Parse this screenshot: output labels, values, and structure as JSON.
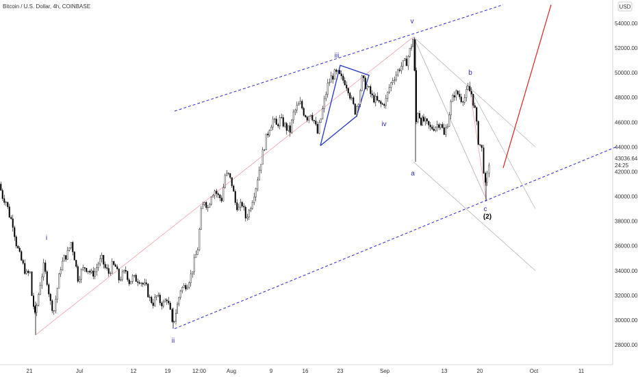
{
  "header": {
    "symbol_title": "Bitcoin / U.S. Dollar, 4h, COINBASE",
    "currency_badge": "USD"
  },
  "price_axis": {
    "ticks": [
      "54000.00",
      "52000.00",
      "50000.00",
      "48000.00",
      "46000.00",
      "44000.00",
      "42000.00",
      "40000.00",
      "38000.00",
      "36000.00",
      "34000.00",
      "32000.00",
      "30000.00",
      "28000.00"
    ],
    "last_price": "43036.64",
    "countdown": "24:25"
  },
  "time_axis": {
    "ticks": [
      "21",
      "Jul",
      "12",
      "19",
      "12:00",
      "Aug",
      "9",
      "16",
      "23",
      "Sep",
      "13",
      "20",
      "Oct",
      "11"
    ]
  },
  "wave_labels": {
    "i": "i",
    "ii": "ii",
    "iii": "iii",
    "iv": "iv",
    "v": "v",
    "a": "a",
    "b": "b",
    "c": "c",
    "c2": "(2)"
  },
  "colors": {
    "candle": "#000000",
    "channel_dash": "#3b3bd6",
    "wave_label": "#2b2bb8",
    "triangle": "#2e3fc2",
    "pink_line": "#f4a0a8",
    "grey_line": "#b8b8b8",
    "red_projection": "#e02020"
  },
  "chart_data": {
    "type": "candlestick",
    "title": "Bitcoin / U.S. Dollar, 4h, COINBASE",
    "ylim": [
      27500,
      55500
    ],
    "y_ticks": [
      54000,
      52000,
      50000,
      48000,
      46000,
      44000,
      42000,
      40000,
      38000,
      36000,
      34000,
      32000,
      30000,
      28000
    ],
    "x_ticks": [
      "21",
      "Jul",
      "12",
      "19",
      "12:00",
      "Aug",
      "9",
      "16",
      "23",
      "Sep",
      "13",
      "20",
      "Oct",
      "11"
    ],
    "price_path": [
      [
        0,
        41000
      ],
      [
        5,
        40000
      ],
      [
        10,
        39600
      ],
      [
        15,
        38500
      ],
      [
        20,
        37800
      ],
      [
        25,
        36200
      ],
      [
        30,
        35200
      ],
      [
        35,
        34400
      ],
      [
        40,
        33700
      ],
      [
        45,
        33800
      ],
      [
        48,
        32000
      ],
      [
        52,
        30300
      ],
      [
        55,
        31200
      ],
      [
        60,
        33000
      ],
      [
        65,
        34300
      ],
      [
        70,
        33200
      ],
      [
        75,
        31400
      ],
      [
        80,
        30800
      ],
      [
        85,
        32600
      ],
      [
        90,
        34300
      ],
      [
        95,
        35000
      ],
      [
        100,
        35400
      ],
      [
        105,
        36300
      ],
      [
        110,
        35100
      ],
      [
        115,
        33400
      ],
      [
        120,
        33900
      ],
      [
        125,
        34300
      ],
      [
        130,
        34100
      ],
      [
        135,
        33700
      ],
      [
        140,
        33900
      ],
      [
        145,
        34600
      ],
      [
        150,
        34900
      ],
      [
        155,
        34200
      ],
      [
        160,
        33800
      ],
      [
        165,
        34400
      ],
      [
        170,
        34300
      ],
      [
        175,
        33300
      ],
      [
        180,
        33600
      ],
      [
        185,
        34000
      ],
      [
        190,
        33100
      ],
      [
        195,
        33400
      ],
      [
        200,
        33300
      ],
      [
        205,
        33300
      ],
      [
        210,
        32900
      ],
      [
        215,
        32600
      ],
      [
        220,
        31700
      ],
      [
        225,
        31400
      ],
      [
        230,
        31900
      ],
      [
        235,
        31500
      ],
      [
        240,
        31300
      ],
      [
        245,
        31800
      ],
      [
        250,
        30600
      ],
      [
        253,
        29600
      ],
      [
        256,
        30100
      ],
      [
        260,
        31200
      ],
      [
        265,
        32500
      ],
      [
        270,
        32700
      ],
      [
        275,
        33000
      ],
      [
        280,
        33600
      ],
      [
        285,
        34700
      ],
      [
        290,
        35800
      ],
      [
        295,
        38700
      ],
      [
        300,
        39700
      ],
      [
        305,
        39100
      ],
      [
        310,
        40200
      ],
      [
        315,
        40500
      ],
      [
        320,
        40000
      ],
      [
        325,
        39800
      ],
      [
        330,
        41700
      ],
      [
        335,
        41700
      ],
      [
        340,
        41000
      ],
      [
        345,
        39500
      ],
      [
        350,
        39000
      ],
      [
        355,
        39400
      ],
      [
        360,
        38300
      ],
      [
        365,
        38800
      ],
      [
        370,
        39800
      ],
      [
        375,
        40800
      ],
      [
        380,
        42200
      ],
      [
        385,
        43500
      ],
      [
        390,
        44700
      ],
      [
        395,
        45600
      ],
      [
        400,
        46200
      ],
      [
        405,
        45700
      ],
      [
        410,
        46200
      ],
      [
        415,
        45900
      ],
      [
        420,
        45500
      ],
      [
        425,
        45300
      ],
      [
        430,
        46700
      ],
      [
        435,
        47200
      ],
      [
        440,
        47500
      ],
      [
        445,
        46800
      ],
      [
        450,
        46400
      ],
      [
        455,
        46800
      ],
      [
        460,
        46100
      ],
      [
        465,
        45100
      ],
      [
        470,
        46300
      ],
      [
        475,
        47700
      ],
      [
        480,
        49000
      ],
      [
        485,
        49600
      ],
      [
        490,
        49900
      ],
      [
        495,
        49900
      ],
      [
        500,
        49500
      ],
      [
        505,
        49300
      ],
      [
        510,
        48700
      ],
      [
        515,
        47700
      ],
      [
        520,
        46900
      ],
      [
        525,
        47800
      ],
      [
        530,
        49500
      ],
      [
        535,
        49000
      ],
      [
        540,
        48600
      ],
      [
        545,
        48000
      ],
      [
        550,
        47800
      ],
      [
        555,
        47500
      ],
      [
        560,
        47400
      ],
      [
        565,
        47800
      ],
      [
        570,
        48800
      ],
      [
        575,
        49500
      ],
      [
        580,
        49900
      ],
      [
        585,
        50400
      ],
      [
        590,
        50700
      ],
      [
        595,
        50900
      ],
      [
        600,
        51800
      ],
      [
        604,
        52700
      ],
      [
        607,
        50000
      ],
      [
        609,
        46000
      ],
      [
        612,
        46900
      ],
      [
        616,
        46100
      ],
      [
        620,
        46100
      ],
      [
        625,
        45800
      ],
      [
        630,
        45500
      ],
      [
        635,
        45600
      ],
      [
        640,
        45800
      ],
      [
        645,
        46000
      ],
      [
        650,
        44900
      ],
      [
        655,
        46000
      ],
      [
        660,
        47500
      ],
      [
        665,
        48300
      ],
      [
        670,
        48300
      ],
      [
        675,
        47900
      ],
      [
        680,
        48000
      ],
      [
        685,
        48700
      ],
      [
        690,
        48300
      ],
      [
        695,
        47000
      ],
      [
        700,
        44500
      ],
      [
        705,
        43800
      ],
      [
        708,
        42200
      ],
      [
        710,
        40800
      ],
      [
        713,
        41600
      ],
      [
        716,
        42700
      ]
    ],
    "channels": {
      "upper": [
        [
          255,
          46900
        ],
        [
          735,
          55500
        ]
      ],
      "lower": [
        [
          255,
          29300
        ],
        [
          900,
          44000
        ]
      ]
    },
    "wave_points": {
      "i": {
        "x": 68,
        "y": 36800
      },
      "ii": {
        "x": 253,
        "y": 29300
      },
      "iii": {
        "x": 497,
        "y": 50600
      },
      "iv": {
        "x": 561,
        "y": 45800
      },
      "v": {
        "x": 604,
        "y": 52900
      },
      "a": {
        "x": 604,
        "y": 42800
      },
      "b": {
        "x": 686,
        "y": 48800
      },
      "c": {
        "x": 710,
        "y": 39800
      }
    }
  }
}
